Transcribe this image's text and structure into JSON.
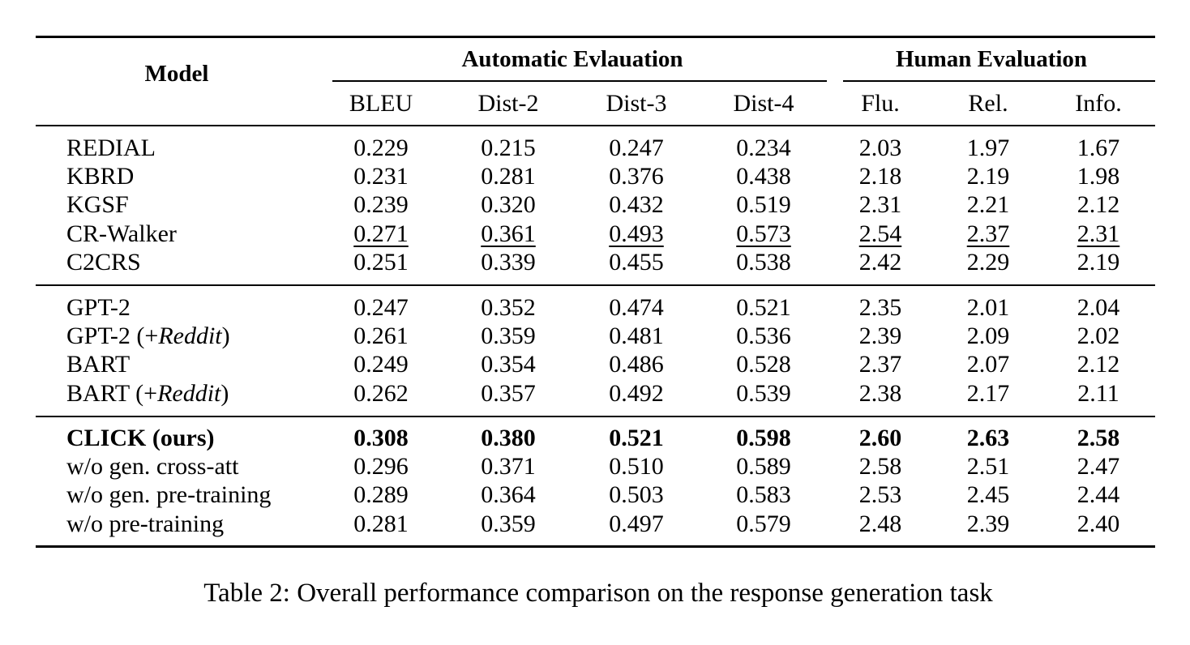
{
  "header": {
    "model": "Model",
    "automatic_group": "Automatic Evlauation",
    "human_group": "Human Evaluation",
    "columns": [
      "BLEU",
      "Dist-2",
      "Dist-3",
      "Dist-4",
      "Flu.",
      "Rel.",
      "Info."
    ]
  },
  "groups": [
    {
      "rows": [
        {
          "model": "REDIAL",
          "values": [
            "0.229",
            "0.215",
            "0.247",
            "0.234",
            "2.03",
            "1.97",
            "1.67"
          ]
        },
        {
          "model": "KBRD",
          "values": [
            "0.231",
            "0.281",
            "0.376",
            "0.438",
            "2.18",
            "2.19",
            "1.98"
          ]
        },
        {
          "model": "KGSF",
          "values": [
            "0.239",
            "0.320",
            "0.432",
            "0.519",
            "2.31",
            "2.21",
            "2.12"
          ]
        },
        {
          "model": "CR-Walker",
          "values": [
            "0.271",
            "0.361",
            "0.493",
            "0.573",
            "2.54",
            "2.37",
            "2.31"
          ],
          "underline": true
        },
        {
          "model": "C2CRS",
          "values": [
            "0.251",
            "0.339",
            "0.455",
            "0.538",
            "2.42",
            "2.29",
            "2.19"
          ]
        }
      ]
    },
    {
      "rows": [
        {
          "model": "GPT-2",
          "values": [
            "0.247",
            "0.352",
            "0.474",
            "0.521",
            "2.35",
            "2.01",
            "2.04"
          ]
        },
        {
          "model": "GPT-2 (+",
          "model_italic": "Reddit",
          "model_suffix": ")",
          "values": [
            "0.261",
            "0.359",
            "0.481",
            "0.536",
            "2.39",
            "2.09",
            "2.02"
          ]
        },
        {
          "model": "BART",
          "values": [
            "0.249",
            "0.354",
            "0.486",
            "0.528",
            "2.37",
            "2.07",
            "2.12"
          ]
        },
        {
          "model": "BART (+",
          "model_italic": "Reddit",
          "model_suffix": ")",
          "values": [
            "0.262",
            "0.357",
            "0.492",
            "0.539",
            "2.38",
            "2.17",
            "2.11"
          ]
        }
      ]
    },
    {
      "rows": [
        {
          "model": "CLICK (ours)",
          "values": [
            "0.308",
            "0.380",
            "0.521",
            "0.598",
            "2.60",
            "2.63",
            "2.58"
          ],
          "bold": true
        },
        {
          "model": "w/o gen. cross-att",
          "values": [
            "0.296",
            "0.371",
            "0.510",
            "0.589",
            "2.58",
            "2.51",
            "2.47"
          ]
        },
        {
          "model": "w/o gen. pre-training",
          "values": [
            "0.289",
            "0.364",
            "0.503",
            "0.583",
            "2.53",
            "2.45",
            "2.44"
          ]
        },
        {
          "model": "w/o pre-training",
          "values": [
            "0.281",
            "0.359",
            "0.497",
            "0.579",
            "2.48",
            "2.39",
            "2.40"
          ]
        }
      ]
    }
  ],
  "caption": "Table 2: Overall performance comparison on the response generation task"
}
